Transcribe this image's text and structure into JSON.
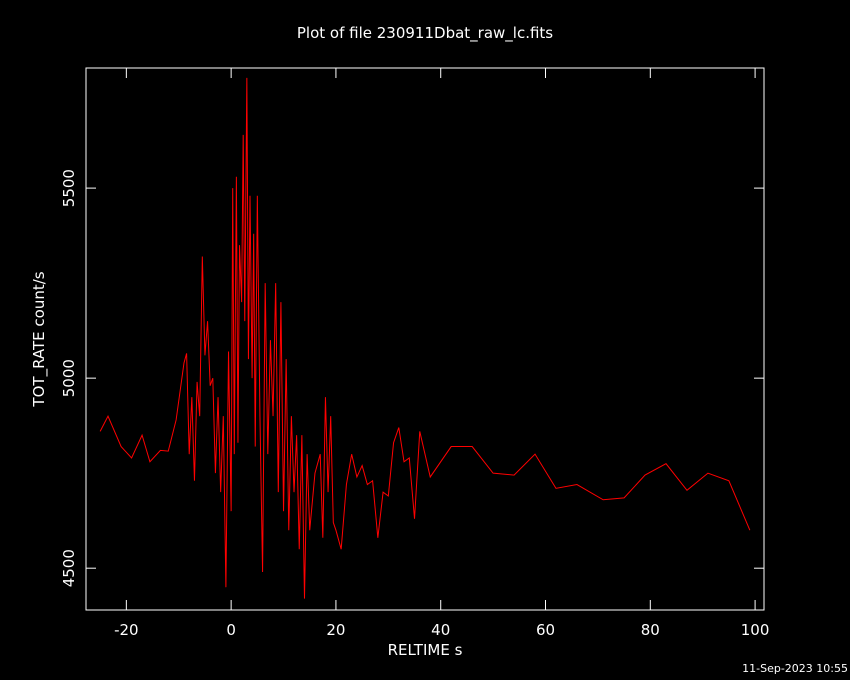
{
  "chart_data": {
    "type": "line",
    "title": "Plot of file 230911Dbat_raw_lc.fits",
    "x_label": "RELTIME  s",
    "y_label": "TOT_RATE  count/s",
    "footer": "11-Sep-2023 10:55",
    "xlim": [
      -27.7,
      101.7
    ],
    "ylim": [
      4390,
      5816
    ],
    "xticks": [
      -20,
      0,
      20,
      40,
      60,
      80,
      100
    ],
    "yticks": [
      4500,
      5000,
      5500
    ],
    "x": [
      -25,
      -23.5,
      -21,
      -19,
      -17,
      -15.5,
      -13.5,
      -12,
      -10.5,
      -9,
      -8.5,
      -8,
      -7.5,
      -7,
      -6.5,
      -6,
      -5.5,
      -5,
      -4.5,
      -4,
      -3.5,
      -3,
      -2.5,
      -2,
      -1.5,
      -1,
      -0.5,
      0,
      0.3,
      0.6,
      1,
      1.3,
      1.6,
      2,
      2.3,
      2.6,
      3,
      3.3,
      3.6,
      4,
      4.3,
      4.6,
      5,
      5.5,
      6,
      6.5,
      7,
      7.5,
      8,
      8.5,
      9,
      9.5,
      10,
      10.5,
      11,
      11.5,
      12,
      12.5,
      13,
      13.5,
      14,
      14.5,
      15,
      16,
      17,
      17.5,
      18,
      18.5,
      19,
      19.5,
      20,
      21,
      22,
      23,
      24,
      25,
      26,
      27,
      28,
      29,
      30,
      31,
      32,
      33,
      34,
      35,
      36,
      38,
      42,
      46,
      50,
      54,
      58,
      62,
      66,
      71,
      75,
      79,
      83,
      87,
      91,
      95,
      99
    ],
    "series": [
      {
        "name": "TOT_RATE",
        "color": "#ff0000",
        "values": [
          4860,
          4900,
          4820,
          4790,
          4850,
          4780,
          4810,
          4808,
          4890,
          5040,
          5065,
          4800,
          4950,
          4730,
          4990,
          4900,
          5320,
          5060,
          5150,
          4980,
          5000,
          4750,
          4950,
          4700,
          4900,
          4450,
          5070,
          4650,
          5500,
          4800,
          5530,
          4830,
          5350,
          5200,
          5640,
          5150,
          5790,
          5050,
          5480,
          5000,
          5380,
          4820,
          5480,
          4900,
          4490,
          5250,
          4800,
          5100,
          4900,
          5250,
          4700,
          5200,
          4650,
          5050,
          4600,
          4900,
          4700,
          4850,
          4550,
          4850,
          4420,
          4800,
          4600,
          4750,
          4800,
          4580,
          4950,
          4700,
          4900,
          4620,
          4600,
          4550,
          4720,
          4800,
          4740,
          4770,
          4720,
          4730,
          4580,
          4700,
          4690,
          4830,
          4870,
          4780,
          4790,
          4630,
          4860,
          4740,
          4820,
          4820,
          4750,
          4745,
          4800,
          4710,
          4720,
          4680,
          4685,
          4745,
          4775,
          4705,
          4750,
          4730,
          4600
        ]
      }
    ]
  }
}
